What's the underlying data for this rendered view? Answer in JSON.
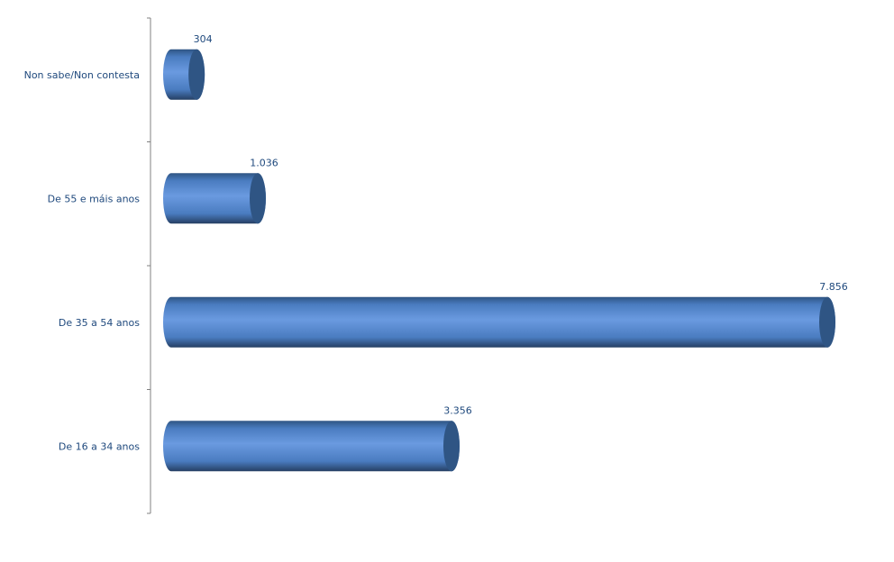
{
  "chart_data": {
    "type": "bar",
    "orientation": "horizontal",
    "style": "3d-cylinder",
    "categories": [
      "Non sabe/Non contesta",
      "De 55 e máis anos",
      "De 35 a 54 anos",
      "De 16 a 34 anos"
    ],
    "values": [
      304,
      1036,
      7856,
      3356
    ],
    "value_labels": [
      "304",
      "1.036",
      "7.856",
      "3.356"
    ],
    "title": "",
    "xlabel": "",
    "ylabel": "",
    "xlim": [
      0,
      7856
    ],
    "grid": false,
    "legend": "none",
    "colors": {
      "bar": "#4f81bd",
      "bar_light": "#6a9ae0",
      "cap": "#2f5584",
      "text": "#1f497d",
      "axis": "#808080"
    }
  }
}
